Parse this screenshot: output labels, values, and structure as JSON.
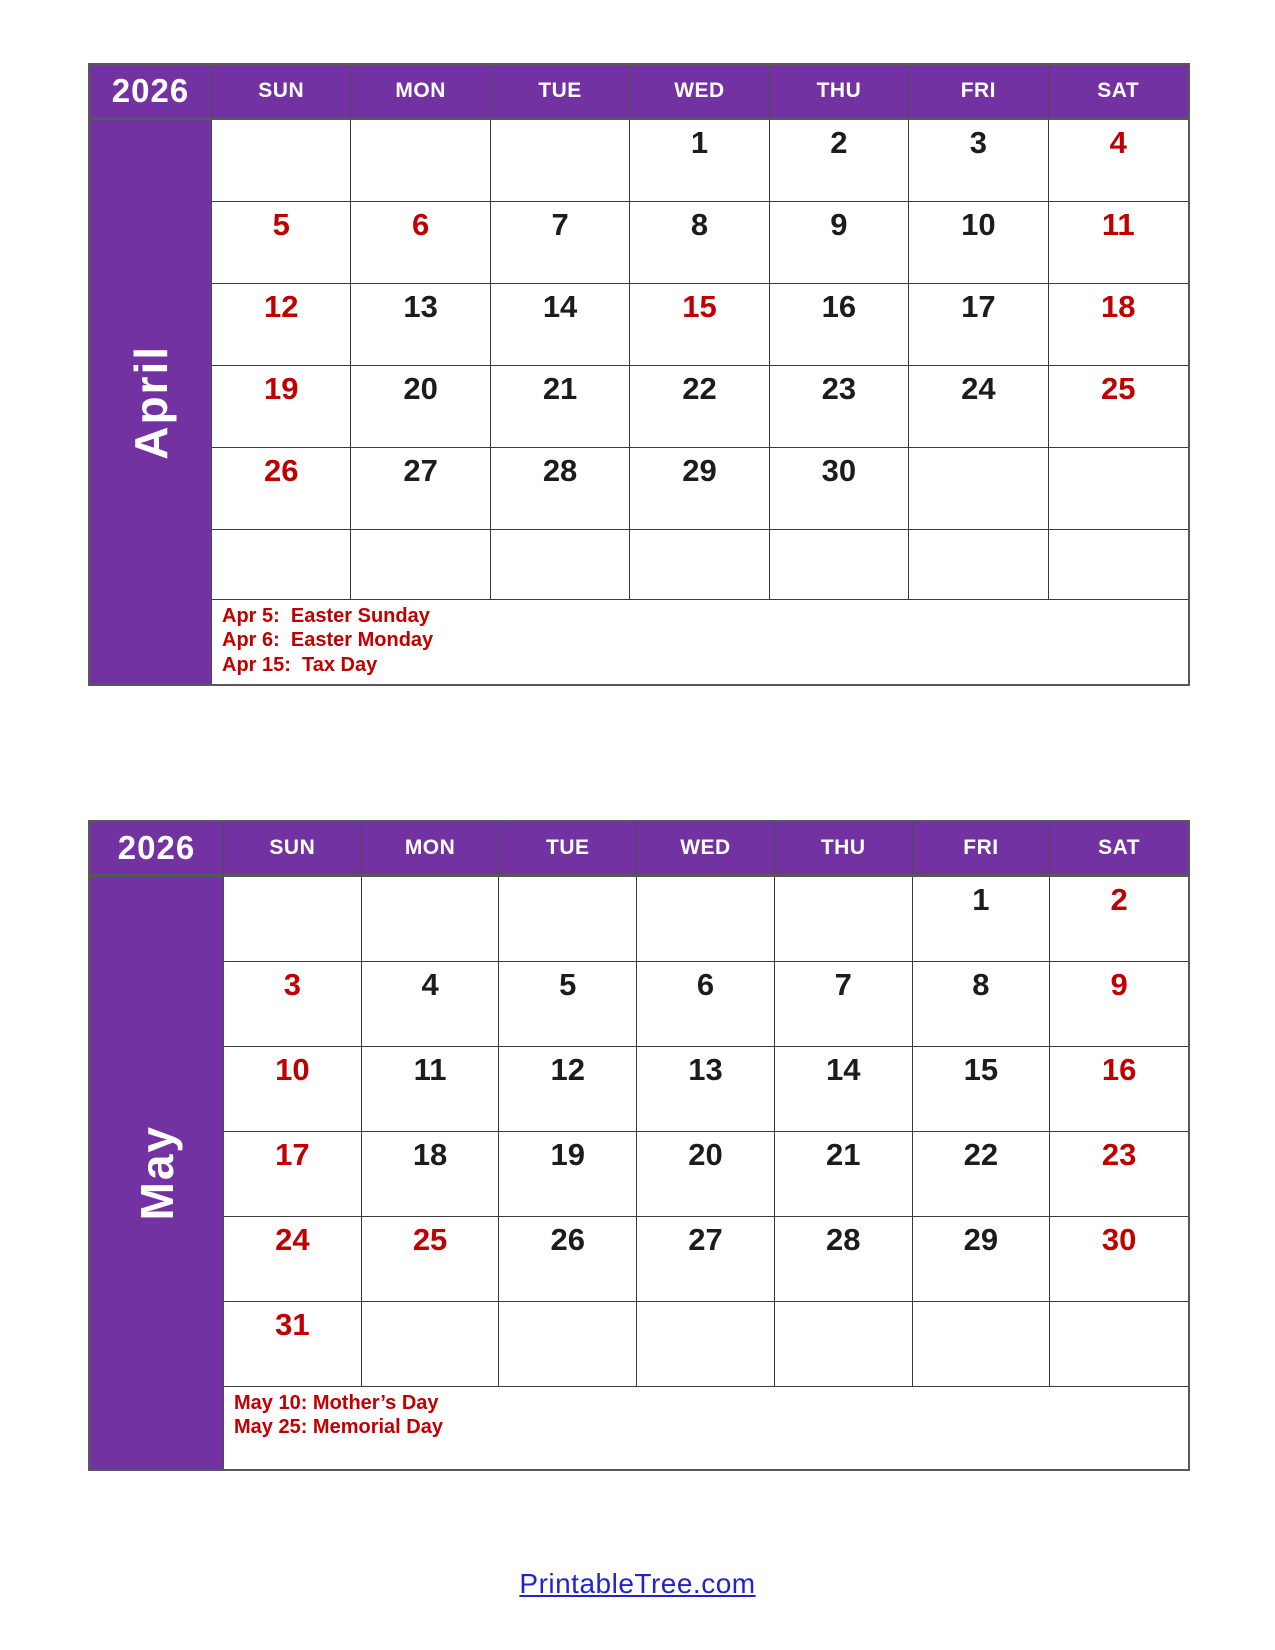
{
  "branding": {
    "site_link": "PrintableTree.com",
    "link_color": "#2323cc"
  },
  "colors": {
    "header_purple": "#7232a2",
    "weekend_holiday_red": "#c00000",
    "weekday_black": "#1c1c1c",
    "grid_line": "#3a3a3e"
  },
  "calendars": [
    {
      "year": "2026",
      "month": "April",
      "day_headers": [
        "SUN",
        "MON",
        "TUE",
        "WED",
        "THU",
        "FRI",
        "SAT"
      ],
      "weeks": [
        [
          "",
          "",
          "",
          "1",
          "2",
          "3",
          "4"
        ],
        [
          "5",
          "6",
          "7",
          "8",
          "9",
          "10",
          "11"
        ],
        [
          "12",
          "13",
          "14",
          "15",
          "16",
          "17",
          "18"
        ],
        [
          "19",
          "20",
          "21",
          "22",
          "23",
          "24",
          "25"
        ],
        [
          "26",
          "27",
          "28",
          "29",
          "30",
          "",
          ""
        ],
        [
          "",
          "",
          "",
          "",
          "",
          "",
          ""
        ]
      ],
      "red_dates": [
        4,
        5,
        6,
        11,
        12,
        15,
        18,
        19,
        25,
        26
      ],
      "holidays": [
        "Apr 5:  Easter Sunday",
        "Apr 6:  Easter Monday",
        "Apr 15:  Tax Day"
      ]
    },
    {
      "year": "2026",
      "month": "May",
      "day_headers": [
        "SUN",
        "MON",
        "TUE",
        "WED",
        "THU",
        "FRI",
        "SAT"
      ],
      "weeks": [
        [
          "",
          "",
          "",
          "",
          "",
          "1",
          "2"
        ],
        [
          "3",
          "4",
          "5",
          "6",
          "7",
          "8",
          "9"
        ],
        [
          "10",
          "11",
          "12",
          "13",
          "14",
          "15",
          "16"
        ],
        [
          "17",
          "18",
          "19",
          "20",
          "21",
          "22",
          "23"
        ],
        [
          "24",
          "25",
          "26",
          "27",
          "28",
          "29",
          "30"
        ],
        [
          "31",
          "",
          "",
          "",
          "",
          "",
          ""
        ]
      ],
      "red_dates": [
        2,
        3,
        9,
        10,
        16,
        17,
        23,
        24,
        25,
        30,
        31
      ],
      "holidays": [
        "May 10: Mother’s Day",
        "May 25: Memorial Day"
      ]
    }
  ]
}
